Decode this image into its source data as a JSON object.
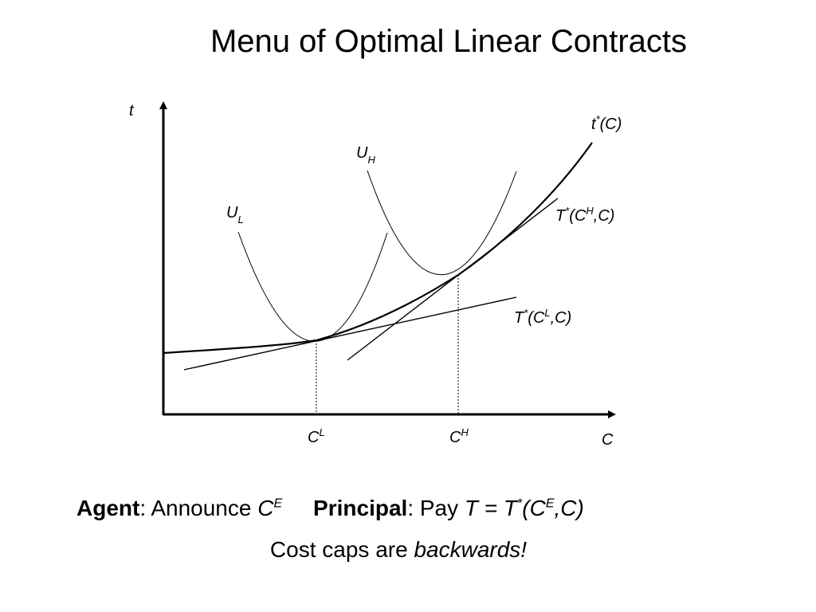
{
  "title": "Menu of Optimal Linear Contracts",
  "axes": {
    "y_label": "t",
    "x_label": "C",
    "x_ticks": [
      {
        "base": "C",
        "sup": "L"
      },
      {
        "base": "C",
        "sup": "H"
      }
    ]
  },
  "curves": {
    "t_star": {
      "base": "t",
      "sup": "*",
      "rest": "(C)"
    },
    "u_h": {
      "base": "U",
      "sub": "H"
    },
    "u_l": {
      "base": "U",
      "sub": "L"
    },
    "tangent_high": {
      "base": "T",
      "sup1": "*",
      "mid": "(C",
      "sup2": "H",
      "rest": ",C)"
    },
    "tangent_low": {
      "base": "T",
      "sup1": "*",
      "mid": "(C",
      "sup2": "L",
      "rest": ",C)"
    }
  },
  "caption": {
    "agent_label": "Agent",
    "agent_sep": ": Announce ",
    "agent_var": "C",
    "agent_var_sup": "E",
    "principal_label": "Principal",
    "principal_sep": ": Pay ",
    "principal_eq_a": "T = T",
    "principal_eq_sup": "*",
    "principal_eq_b": "(C",
    "principal_eq_sup2": "E",
    "principal_eq_c": ",C)",
    "line2_text": "Cost caps are ",
    "line2_emph": "backwards!"
  }
}
